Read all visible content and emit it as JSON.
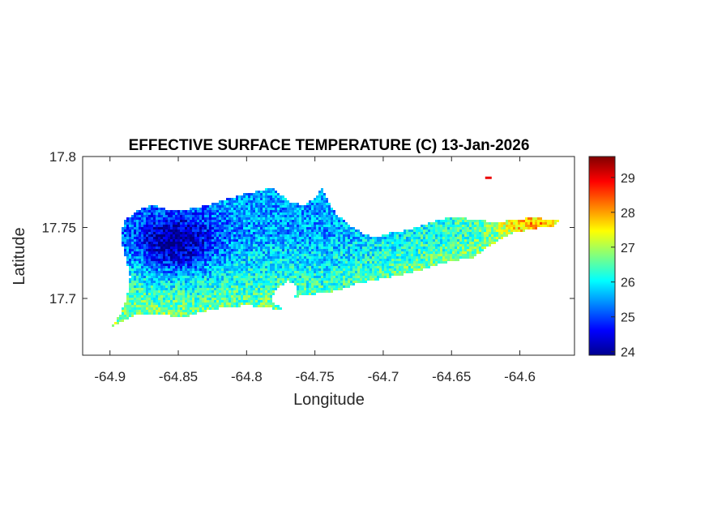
{
  "chart_data": {
    "type": "heatmap",
    "title": "EFFECTIVE SURFACE TEMPERATURE (C) 13-Jan-2026",
    "xlabel": "Longitude",
    "ylabel": "Latitude",
    "xlim": [
      -64.92,
      -64.56
    ],
    "ylim": [
      17.66,
      17.8
    ],
    "x_ticks": [
      -64.9,
      -64.85,
      -64.8,
      -64.75,
      -64.7,
      -64.65,
      -64.6
    ],
    "x_tick_labels": [
      "-64.9",
      "-64.85",
      "-64.8",
      "-64.75",
      "-64.7",
      "-64.65",
      "-64.6"
    ],
    "y_ticks": [
      17.7,
      17.75,
      17.8
    ],
    "y_tick_labels": [
      "17.7",
      "17.75",
      "17.8"
    ],
    "colorbar": {
      "colormap": "jet",
      "range": [
        23.9,
        29.6
      ],
      "ticks": [
        24,
        25,
        26,
        27,
        28,
        29
      ],
      "tick_labels": [
        "24",
        "25",
        "26",
        "27",
        "28",
        "29"
      ]
    },
    "grid": false,
    "legend": "none",
    "island_outline": [
      [
        -64.9,
        17.679
      ],
      [
        -64.893,
        17.688
      ],
      [
        -64.888,
        17.7
      ],
      [
        -64.885,
        17.715
      ],
      [
        -64.888,
        17.727
      ],
      [
        -64.892,
        17.742
      ],
      [
        -64.89,
        17.754
      ],
      [
        -64.88,
        17.762
      ],
      [
        -64.868,
        17.766
      ],
      [
        -64.855,
        17.762
      ],
      [
        -64.842,
        17.763
      ],
      [
        -64.828,
        17.766
      ],
      [
        -64.815,
        17.77
      ],
      [
        -64.8,
        17.774
      ],
      [
        -64.79,
        17.776
      ],
      [
        -64.78,
        17.778
      ],
      [
        -64.775,
        17.773
      ],
      [
        -64.768,
        17.768
      ],
      [
        -64.758,
        17.766
      ],
      [
        -64.75,
        17.771
      ],
      [
        -64.745,
        17.778
      ],
      [
        -64.742,
        17.772
      ],
      [
        -64.735,
        17.76
      ],
      [
        -64.725,
        17.752
      ],
      [
        -64.715,
        17.746
      ],
      [
        -64.705,
        17.743
      ],
      [
        -64.695,
        17.746
      ],
      [
        -64.683,
        17.748
      ],
      [
        -64.67,
        17.752
      ],
      [
        -64.658,
        17.756
      ],
      [
        -64.645,
        17.757
      ],
      [
        -64.63,
        17.755
      ],
      [
        -64.618,
        17.754
      ],
      [
        -64.605,
        17.755
      ],
      [
        -64.592,
        17.757
      ],
      [
        -64.58,
        17.756
      ],
      [
        -64.57,
        17.755
      ],
      [
        -64.575,
        17.751
      ],
      [
        -64.59,
        17.749
      ],
      [
        -64.605,
        17.746
      ],
      [
        -64.615,
        17.741
      ],
      [
        -64.625,
        17.735
      ],
      [
        -64.635,
        17.728
      ],
      [
        -64.645,
        17.727
      ],
      [
        -64.66,
        17.724
      ],
      [
        -64.675,
        17.719
      ],
      [
        -64.69,
        17.716
      ],
      [
        -64.705,
        17.713
      ],
      [
        -64.72,
        17.71
      ],
      [
        -64.735,
        17.705
      ],
      [
        -64.75,
        17.703
      ],
      [
        -64.765,
        17.701
      ],
      [
        -64.762,
        17.708
      ],
      [
        -64.77,
        17.712
      ],
      [
        -64.778,
        17.707
      ],
      [
        -64.782,
        17.698
      ],
      [
        -64.772,
        17.692
      ],
      [
        -64.782,
        17.693
      ],
      [
        -64.8,
        17.695
      ],
      [
        -64.82,
        17.693
      ],
      [
        -64.835,
        17.69
      ],
      [
        -64.848,
        17.686
      ],
      [
        -64.858,
        17.688
      ],
      [
        -64.868,
        17.689
      ],
      [
        -64.88,
        17.689
      ],
      [
        -64.892,
        17.683
      ]
    ],
    "field_notes": {
      "west_interior_min": 24.0,
      "central_interior": 25.5,
      "east_end_max": 28.3,
      "isolated_hot_pixel": 29.0
    }
  }
}
